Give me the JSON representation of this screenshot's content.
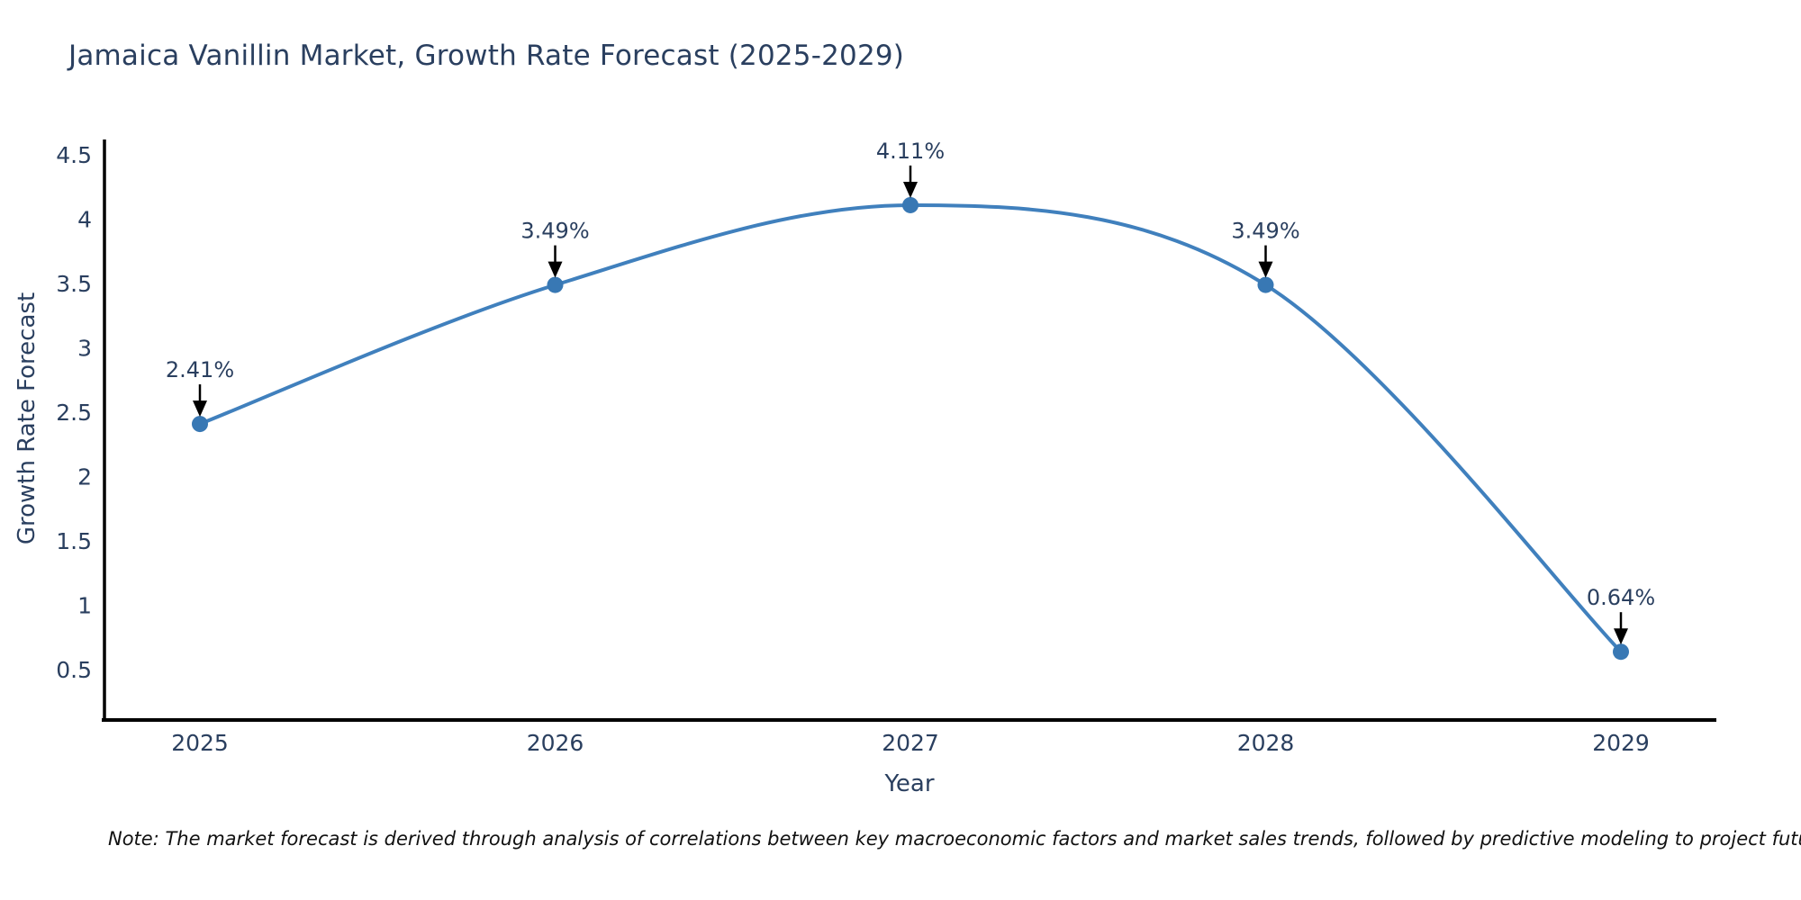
{
  "title": "Jamaica Vanillin Market, Growth Rate Forecast (2025-2029)",
  "note": "Note: The market forecast is derived through analysis of correlations between key macroeconomic factors and market sales trends, followed by predictive modeling to project future sales",
  "chart_data": {
    "type": "line",
    "title": "Jamaica Vanillin Market, Growth Rate Forecast (2025-2029)",
    "x": [
      "2025",
      "2026",
      "2027",
      "2028",
      "2029"
    ],
    "values": [
      2.41,
      3.49,
      4.11,
      3.49,
      0.64
    ],
    "point_labels": [
      "2.41%",
      "3.49%",
      "4.11%",
      "3.49%",
      "0.64%"
    ],
    "xlabel": "Year",
    "ylabel": "Growth Rate Forecast",
    "yticks": [
      0.5,
      1,
      1.5,
      2,
      2.5,
      3,
      3.5,
      4,
      4.5
    ],
    "ylim": [
      0.11,
      4.62
    ],
    "line_shape": "spline",
    "grid": false,
    "legend_position": "none",
    "annotations_have_arrows": true,
    "colors": {
      "line": "#4080bd",
      "marker": "#3878b4",
      "text": "#2a3f5f",
      "axis": "#000000",
      "annotation_arrow": "#000000",
      "note_text": "#111111"
    }
  }
}
